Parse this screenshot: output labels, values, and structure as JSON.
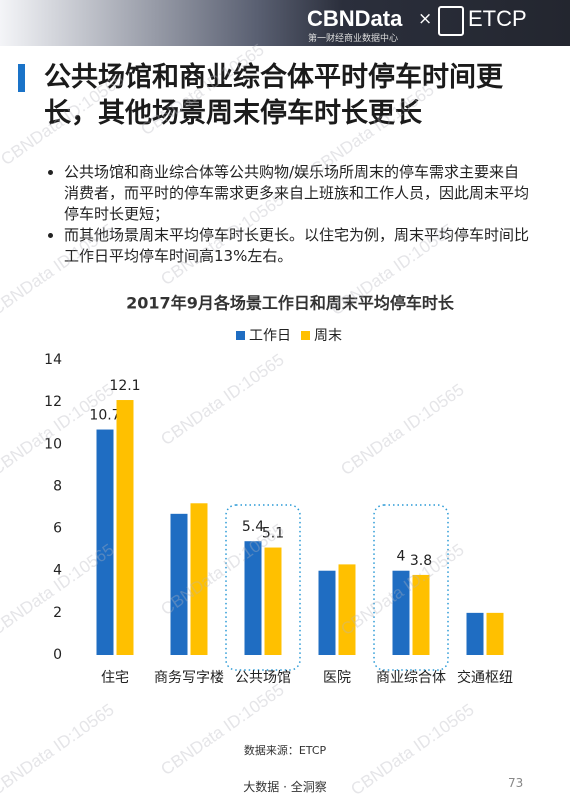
{
  "header": {
    "brand": "CBNData",
    "separator": "×",
    "partner": "ETCP",
    "brand_subtitle": "第一财经商业数据中心"
  },
  "title": "公共场馆和商业综合体平时停车时间更长，其他场景周末停车时长更长",
  "bullets": [
    "公共场馆和商业综合体等公共购物/娱乐场所周末的停车需求主要来自消费者，而平时的停车需求更多来自上班族和工作人员，因此周末平均停车时长更短；",
    "而其他场景周末平均停车时长更长。以住宅为例，周末平均停车时间比工作日平均停车时间高13%左右。"
  ],
  "chart_data": {
    "type": "bar",
    "title": "2017年9月各场景工作日和周末平均停车时长",
    "categories": [
      "住宅",
      "商务写字楼",
      "公共场馆",
      "医院",
      "商业综合体",
      "交通枢纽"
    ],
    "series": [
      {
        "name": "工作日",
        "color": "#1f6dc2",
        "values": [
          10.7,
          6.7,
          5.4,
          4.0,
          4,
          2.0
        ],
        "value_labels": [
          "10.7",
          null,
          "5.4",
          null,
          "4",
          null
        ]
      },
      {
        "name": "周末",
        "color": "#ffc000",
        "values": [
          12.1,
          7.2,
          5.1,
          4.3,
          3.8,
          2.0
        ],
        "value_labels": [
          "12.1",
          null,
          "5.1",
          null,
          "3.8",
          null
        ]
      }
    ],
    "ylim": [
      0,
      14
    ],
    "yticks": [
      0,
      2,
      4,
      6,
      8,
      10,
      12,
      14
    ],
    "grid": false,
    "legend": "top"
  },
  "source": "数据来源：ETCP",
  "footer": {
    "slogan": "大数据 · 全洞察",
    "page": "73"
  },
  "watermark": "CBNData ID:10565"
}
